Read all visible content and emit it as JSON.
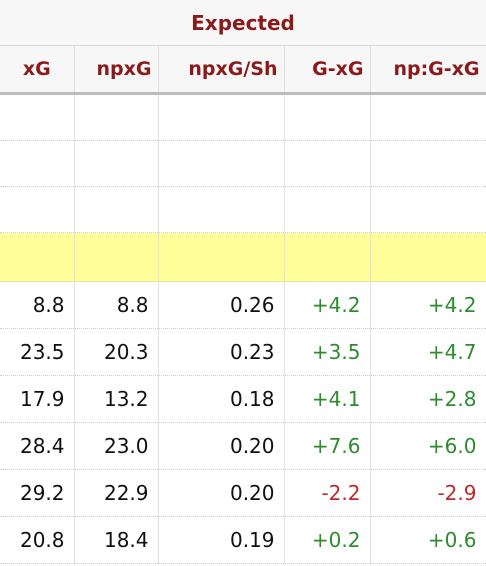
{
  "table": {
    "group_header": "Expected",
    "columns": [
      "xG",
      "npxG",
      "npxG/Sh",
      "G-xG",
      "np:G-xG"
    ],
    "rows": [
      {
        "xg": "8.8",
        "npxg": "8.8",
        "npxg_sh": "0.26",
        "g_xg": "+4.2",
        "np_g_xg": "+4.2"
      },
      {
        "xg": "23.5",
        "npxg": "20.3",
        "npxg_sh": "0.23",
        "g_xg": "+3.5",
        "np_g_xg": "+4.7"
      },
      {
        "xg": "17.9",
        "npxg": "13.2",
        "npxg_sh": "0.18",
        "g_xg": "+4.1",
        "np_g_xg": "+2.8"
      },
      {
        "xg": "28.4",
        "npxg": "23.0",
        "npxg_sh": "0.20",
        "g_xg": "+7.6",
        "np_g_xg": "+6.0"
      },
      {
        "xg": "29.2",
        "npxg": "22.9",
        "npxg_sh": "0.20",
        "g_xg": "-2.2",
        "np_g_xg": "-2.9"
      },
      {
        "xg": "20.8",
        "npxg": "18.4",
        "npxg_sh": "0.19",
        "g_xg": "+0.2",
        "np_g_xg": "+0.6"
      }
    ]
  },
  "colors": {
    "header_text": "#8b1a1a",
    "positive": "#2e8b2e",
    "negative": "#c0262d",
    "highlight_row": "#ffff9a"
  }
}
